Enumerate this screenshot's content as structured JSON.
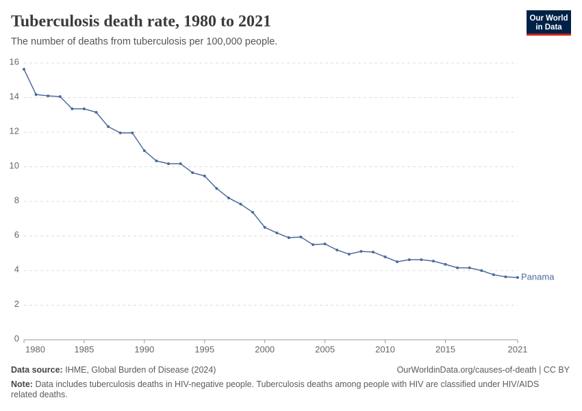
{
  "chart_data": {
    "type": "line",
    "title": "Tuberculosis death rate, 1980 to 2021",
    "subtitle": "The number of deaths from tuberculosis per 100,000 people.",
    "logo": [
      "Our World",
      "in Data"
    ],
    "x": [
      1980,
      1981,
      1982,
      1983,
      1984,
      1985,
      1986,
      1987,
      1988,
      1989,
      1990,
      1991,
      1992,
      1993,
      1994,
      1995,
      1996,
      1997,
      1998,
      1999,
      2000,
      2001,
      2002,
      2003,
      2004,
      2005,
      2006,
      2007,
      2008,
      2009,
      2010,
      2011,
      2012,
      2013,
      2014,
      2015,
      2016,
      2017,
      2018,
      2019,
      2020,
      2021
    ],
    "series": [
      {
        "name": "Panama",
        "color": "#4c6a9c",
        "values": [
          15.64,
          14.18,
          14.1,
          14.06,
          13.35,
          13.35,
          13.15,
          12.32,
          11.96,
          11.96,
          10.93,
          10.34,
          10.18,
          10.18,
          9.66,
          9.47,
          8.75,
          8.2,
          7.84,
          7.37,
          6.5,
          6.18,
          5.9,
          5.94,
          5.5,
          5.54,
          5.19,
          4.95,
          5.11,
          5.07,
          4.79,
          4.51,
          4.63,
          4.63,
          4.55,
          4.36,
          4.16,
          4.16,
          4.0,
          3.76,
          3.64,
          3.6
        ]
      }
    ],
    "xlim": [
      1980,
      2021
    ],
    "xticks": [
      1980,
      1985,
      1990,
      1995,
      2000,
      2005,
      2010,
      2015,
      2021
    ],
    "ylim": [
      0,
      16
    ],
    "yticks": [
      0,
      2,
      4,
      6,
      8,
      10,
      12,
      14,
      16
    ],
    "grid": true,
    "source_label": "Data source:",
    "source": "IHME, Global Burden of Disease (2024)",
    "url": "OurWorldinData.org/causes-of-death | CC BY",
    "note_label": "Note:",
    "note": "Data includes tuberculosis deaths in HIV-negative people. Tuberculosis deaths among people with HIV are classified under HIV/AIDS related deaths."
  }
}
